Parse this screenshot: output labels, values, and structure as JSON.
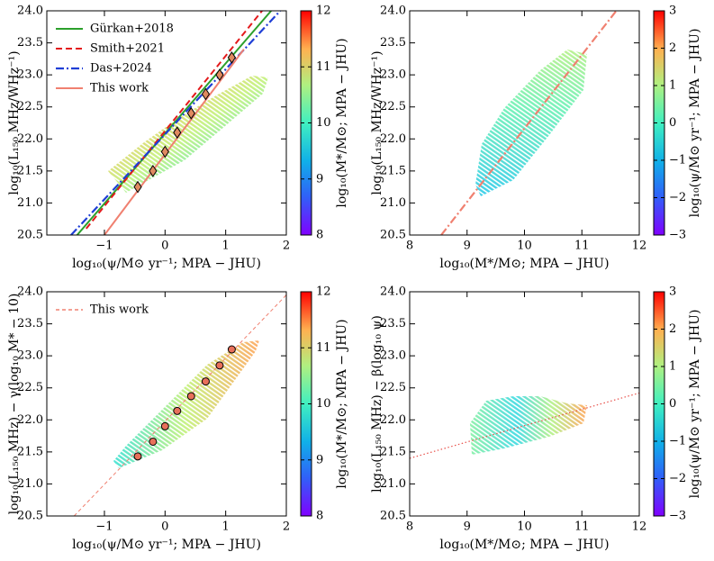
{
  "chart_data": [
    {
      "type": "line",
      "xlabel": "log₁₀(ψ/M⊙ yr⁻¹; MPA − JHU)",
      "ylabel": "log₁₀(L₁₅₀ MHz/WHz⁻¹)",
      "xlim": [
        -1.95,
        2
      ],
      "xticks": [
        {
          "value": -1,
          "label": "−1"
        },
        0,
        1,
        2
      ],
      "ylim": [
        20.5,
        24
      ],
      "yticks": [
        20.5,
        {
          "value": 21,
          "label": "21.0"
        },
        21.5,
        {
          "value": 22,
          "label": "22.0"
        },
        22.5,
        {
          "value": 23,
          "label": "23.0"
        },
        23.5,
        {
          "value": 24,
          "label": "24.0"
        }
      ],
      "legend": "upper left",
      "series": [
        {
          "name": "Gürkan+2018",
          "color": "#2ca02c",
          "style": "solid",
          "x": [
            -1.45,
            1.75
          ],
          "values": [
            20.5,
            24.0
          ]
        },
        {
          "name": "Smith+2021",
          "color": "#e31a1c",
          "style": "dashed",
          "x": [
            -1.3,
            1.6
          ],
          "values": [
            20.6,
            24.0
          ]
        },
        {
          "name": "Das+2024",
          "color": "#1f3fd6",
          "style": "dashdot",
          "x": [
            -1.55,
            1.9
          ],
          "values": [
            20.5,
            24.0
          ]
        },
        {
          "name": "This work",
          "color": "#f08070",
          "style": "solid",
          "x": [
            -1.0,
            1.3
          ],
          "values": [
            20.5,
            23.4
          ]
        },
        {
          "color": "#e08a60",
          "marker": "diamond",
          "x": [
            -0.45,
            -0.2,
            0.0,
            0.2,
            0.43,
            0.67,
            0.9,
            1.1
          ],
          "values": [
            21.25,
            21.5,
            21.8,
            22.1,
            22.4,
            22.7,
            23.0,
            23.27
          ]
        }
      ],
      "colorbar": {
        "label": "log₁₀(M*/M⊙; MPA − JHU)",
        "lim": [
          8,
          12
        ],
        "ticks": [
          8,
          9,
          10,
          11,
          12
        ]
      }
    },
    {
      "type": "line",
      "xlabel": "log₁₀(M*/M⊙; MPA − JHU)",
      "ylabel": "log₁₀(L₁₅₀ MHz/WHz⁻¹)",
      "xlim": [
        8,
        12
      ],
      "xticks": [
        8,
        9,
        10,
        11,
        12
      ],
      "ylim": [
        20.5,
        24
      ],
      "yticks": [
        20.5,
        {
          "value": 21,
          "label": "21.0"
        },
        21.5,
        {
          "value": 22,
          "label": "22.0"
        },
        22.5,
        {
          "value": 23,
          "label": "23.0"
        },
        23.5,
        {
          "value": 24,
          "label": "24.0"
        }
      ],
      "series": [
        {
          "color": "#f08070",
          "style": "dashdot",
          "x": [
            8.55,
            11.6
          ],
          "values": [
            20.5,
            24.0
          ]
        }
      ],
      "colorbar": {
        "label": "log₁₀(ψ/M⊙ yr⁻¹; MPA − JHU)",
        "lim": [
          -3,
          3
        ],
        "ticks": [
          {
            "value": -3,
            "label": "−3"
          },
          {
            "value": -2,
            "label": "−2"
          },
          {
            "value": -1,
            "label": "−1"
          },
          0,
          1,
          2,
          3
        ]
      }
    },
    {
      "type": "line",
      "xlabel": "log₁₀(ψ/M⊙ yr⁻¹; MPA − JHU)",
      "ylabel": "log₁₀(L₁₅₀ MHz) − γ(log₁₀ M* − 10)",
      "xlim": [
        -1.95,
        2
      ],
      "xticks": [
        {
          "value": -1,
          "label": "−1"
        },
        0,
        1,
        2
      ],
      "ylim": [
        20.5,
        24
      ],
      "yticks": [
        20.5,
        {
          "value": 21,
          "label": "21.0"
        },
        21.5,
        {
          "value": 22,
          "label": "22.0"
        },
        22.5,
        {
          "value": 23,
          "label": "23.0"
        },
        23.5,
        {
          "value": 24,
          "label": "24.0"
        }
      ],
      "legend": "upper left",
      "series": [
        {
          "name": "This work",
          "color": "#f08070",
          "style": "thindashed",
          "x": [
            -1.5,
            2.0
          ],
          "values": [
            20.5,
            23.95
          ]
        },
        {
          "color": "#e8705a",
          "marker": "circle",
          "x": [
            -0.45,
            -0.2,
            0.0,
            0.2,
            0.43,
            0.67,
            0.9,
            1.1
          ],
          "values": [
            21.43,
            21.66,
            21.9,
            22.14,
            22.37,
            22.6,
            22.85,
            23.1
          ]
        }
      ],
      "colorbar": {
        "label": "log₁₀(M*/M⊙; MPA − JHU)",
        "lim": [
          8,
          12
        ],
        "ticks": [
          8,
          9,
          10,
          11,
          12
        ]
      }
    },
    {
      "type": "line",
      "xlabel": "log₁₀(M*/M⊙; MPA − JHU)",
      "ylabel": "log₁₀(L₁₅₀ MHz) − β(log₁₀ ψ)",
      "xlim": [
        8,
        12
      ],
      "xticks": [
        8,
        9,
        10,
        11,
        12
      ],
      "ylim": [
        20.5,
        24
      ],
      "yticks": [
        20.5,
        {
          "value": 21,
          "label": "21.0"
        },
        21.5,
        {
          "value": 22,
          "label": "22.0"
        },
        22.5,
        {
          "value": 23,
          "label": "23.0"
        },
        23.5,
        {
          "value": 24,
          "label": "24.0"
        }
      ],
      "series": [
        {
          "color": "#e8504a",
          "style": "dotted",
          "x": [
            8,
            12
          ],
          "values": [
            21.4,
            22.42
          ]
        }
      ],
      "colorbar": {
        "label": "log₁₀(ψ/M⊙ yr⁻¹; MPA − JHU)",
        "lim": [
          -3,
          3
        ],
        "ticks": [
          {
            "value": -3,
            "label": "−3"
          },
          {
            "value": -2,
            "label": "−2"
          },
          {
            "value": -1,
            "label": "−1"
          },
          0,
          1,
          2,
          3
        ]
      }
    }
  ]
}
